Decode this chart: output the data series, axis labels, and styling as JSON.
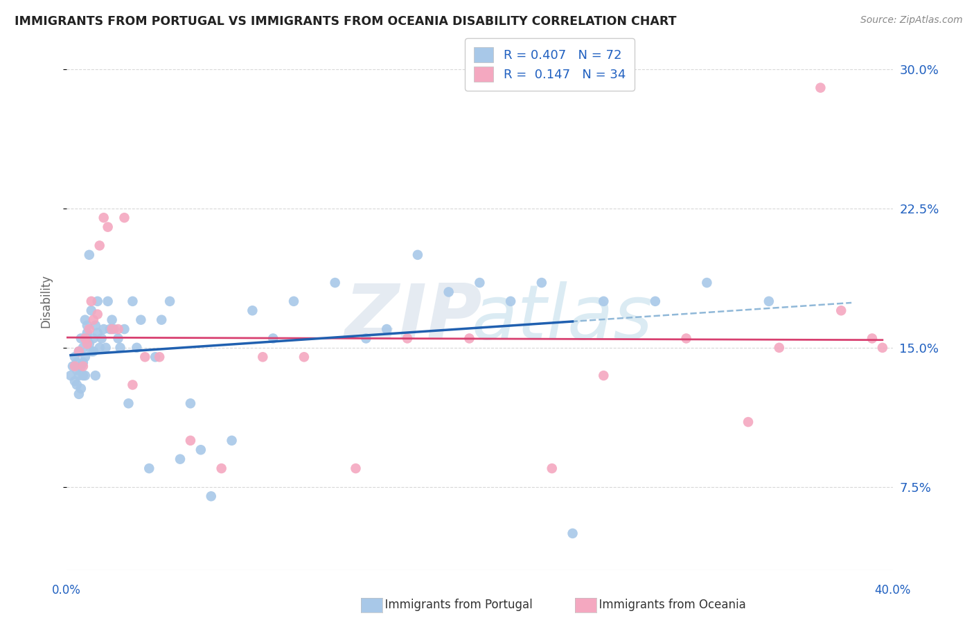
{
  "title": "IMMIGRANTS FROM PORTUGAL VS IMMIGRANTS FROM OCEANIA DISABILITY CORRELATION CHART",
  "source": "Source: ZipAtlas.com",
  "ylabel": "Disability",
  "ytick_vals": [
    0.075,
    0.15,
    0.225,
    0.3
  ],
  "ytick_labels": [
    "7.5%",
    "15.0%",
    "22.5%",
    "30.0%"
  ],
  "xlim": [
    0.0,
    0.4
  ],
  "ylim": [
    0.03,
    0.32
  ],
  "xtick_vals": [
    0.0,
    0.08,
    0.16,
    0.24,
    0.32,
    0.4
  ],
  "legend_label1": "R = 0.407   N = 72",
  "legend_label2": "R =  0.147   N = 34",
  "bottom_label1": "Immigrants from Portugal",
  "bottom_label2": "Immigrants from Oceania",
  "blue_scatter_color": "#a8c8e8",
  "pink_scatter_color": "#f4a8c0",
  "blue_line_color": "#2060b0",
  "pink_line_color": "#d84070",
  "dashed_line_color": "#90b8d8",
  "legend_text_color": "#2060c0",
  "right_tick_color": "#2060c0",
  "bottom_xlab_color": "#2060c0",
  "title_color": "#222222",
  "source_color": "#888888",
  "ylabel_color": "#666666",
  "grid_color": "#d8d8d8",
  "blue_x": [
    0.002,
    0.003,
    0.004,
    0.004,
    0.005,
    0.005,
    0.005,
    0.006,
    0.006,
    0.006,
    0.007,
    0.007,
    0.007,
    0.008,
    0.008,
    0.008,
    0.009,
    0.009,
    0.009,
    0.01,
    0.01,
    0.01,
    0.011,
    0.011,
    0.012,
    0.012,
    0.013,
    0.013,
    0.014,
    0.014,
    0.015,
    0.015,
    0.016,
    0.017,
    0.018,
    0.019,
    0.02,
    0.021,
    0.022,
    0.023,
    0.025,
    0.026,
    0.028,
    0.03,
    0.032,
    0.034,
    0.036,
    0.04,
    0.043,
    0.046,
    0.05,
    0.055,
    0.06,
    0.065,
    0.07,
    0.08,
    0.09,
    0.1,
    0.11,
    0.13,
    0.145,
    0.155,
    0.17,
    0.185,
    0.2,
    0.215,
    0.23,
    0.245,
    0.26,
    0.285,
    0.31,
    0.34
  ],
  "blue_y": [
    0.135,
    0.14,
    0.132,
    0.145,
    0.138,
    0.142,
    0.13,
    0.148,
    0.135,
    0.125,
    0.155,
    0.14,
    0.128,
    0.15,
    0.135,
    0.142,
    0.165,
    0.135,
    0.145,
    0.158,
    0.162,
    0.155,
    0.2,
    0.152,
    0.148,
    0.17,
    0.155,
    0.148,
    0.162,
    0.135,
    0.158,
    0.175,
    0.15,
    0.155,
    0.16,
    0.15,
    0.175,
    0.16,
    0.165,
    0.16,
    0.155,
    0.15,
    0.16,
    0.12,
    0.175,
    0.15,
    0.165,
    0.085,
    0.145,
    0.165,
    0.175,
    0.09,
    0.12,
    0.095,
    0.07,
    0.1,
    0.17,
    0.155,
    0.175,
    0.185,
    0.155,
    0.16,
    0.2,
    0.18,
    0.185,
    0.175,
    0.185,
    0.05,
    0.175,
    0.175,
    0.185,
    0.175
  ],
  "pink_x": [
    0.004,
    0.006,
    0.008,
    0.009,
    0.01,
    0.011,
    0.012,
    0.013,
    0.015,
    0.016,
    0.018,
    0.02,
    0.022,
    0.025,
    0.028,
    0.032,
    0.038,
    0.045,
    0.06,
    0.075,
    0.095,
    0.115,
    0.14,
    0.165,
    0.195,
    0.235,
    0.26,
    0.3,
    0.33,
    0.345,
    0.365,
    0.375,
    0.39,
    0.395
  ],
  "pink_y": [
    0.14,
    0.148,
    0.14,
    0.155,
    0.152,
    0.16,
    0.175,
    0.165,
    0.168,
    0.205,
    0.22,
    0.215,
    0.16,
    0.16,
    0.22,
    0.13,
    0.145,
    0.145,
    0.1,
    0.085,
    0.145,
    0.145,
    0.085,
    0.155,
    0.155,
    0.085,
    0.135,
    0.155,
    0.11,
    0.15,
    0.29,
    0.17,
    0.155,
    0.15
  ]
}
